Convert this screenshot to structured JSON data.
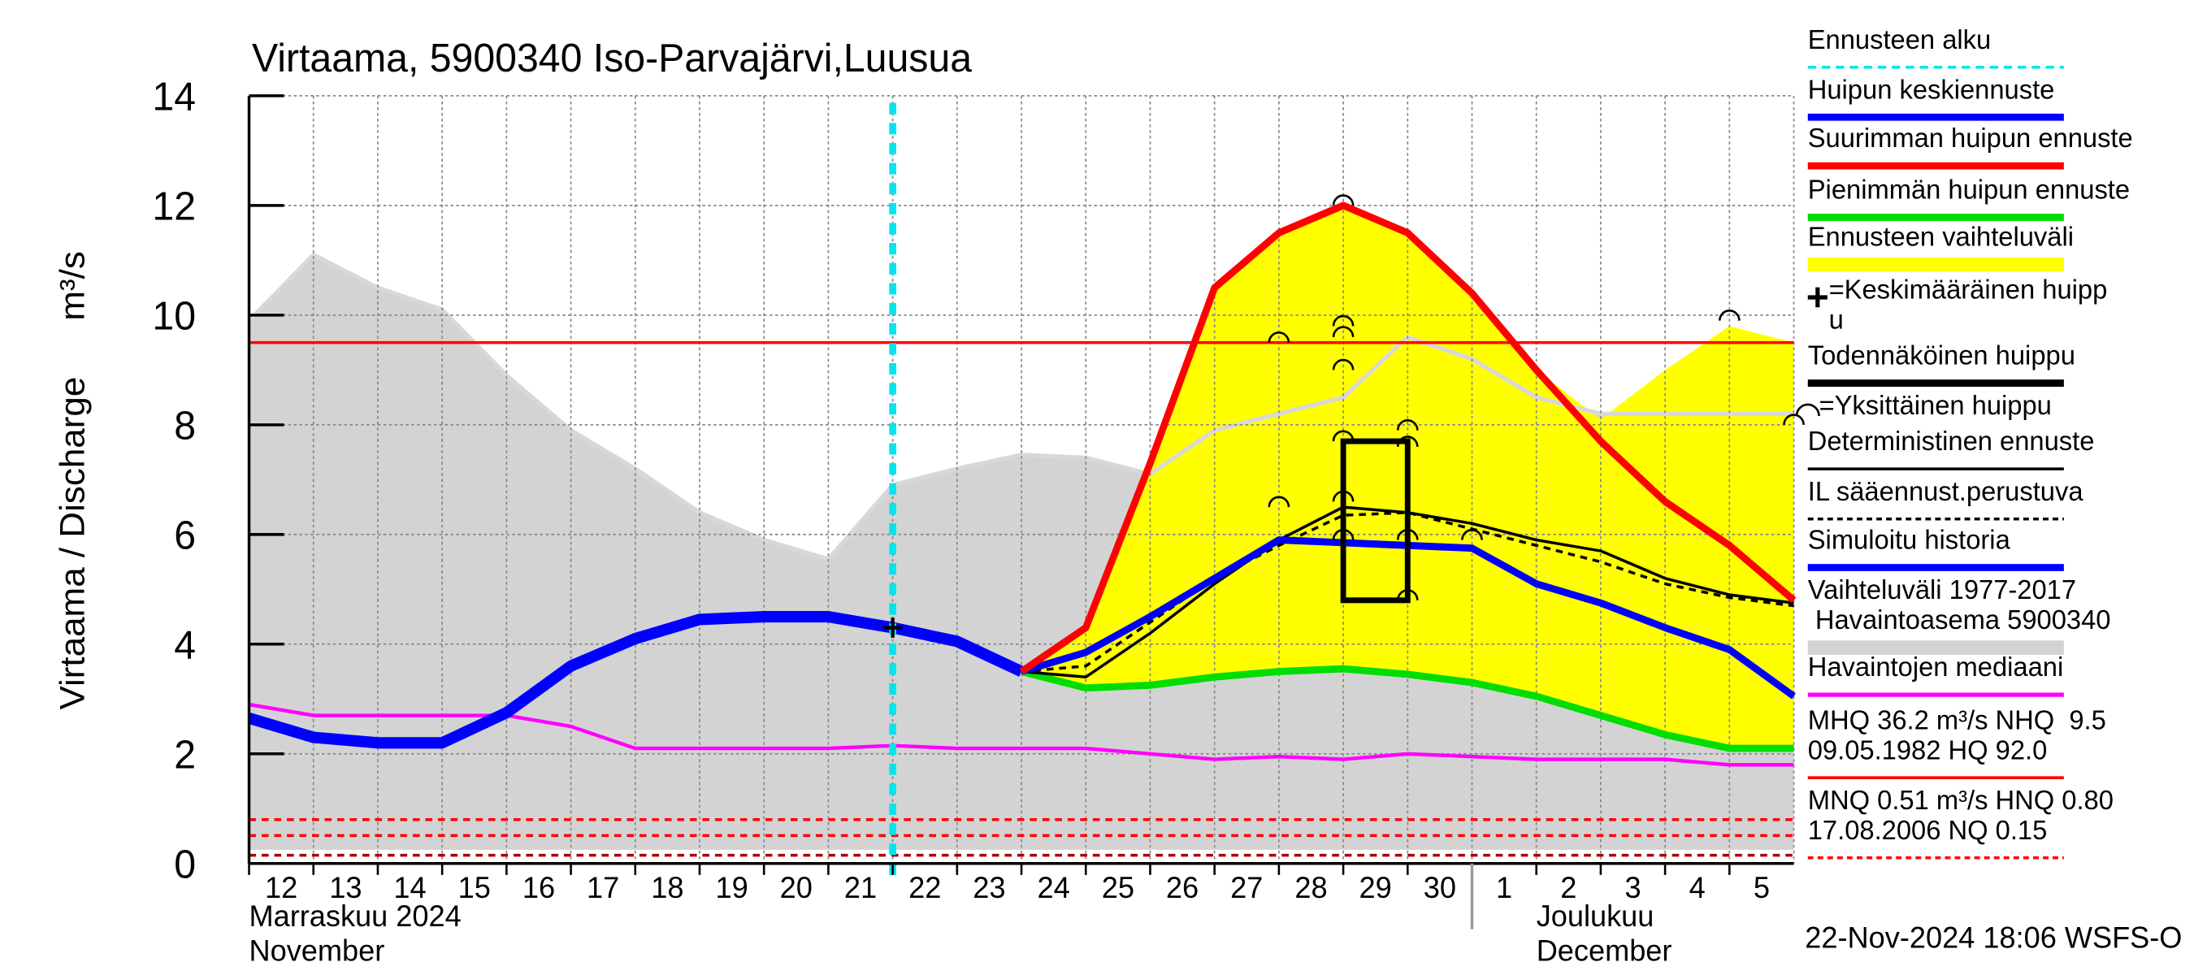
{
  "chart_data": {
    "type": "line",
    "title": "Virtaama, 5900340 Iso-Parvajärvi,Luusua",
    "ylabel": "Virtaama / Discharge",
    "yunit": "m³/s",
    "ylim": [
      0,
      14
    ],
    "yticks": [
      0,
      2,
      4,
      6,
      8,
      10,
      12,
      14
    ],
    "xlim": [
      0,
      24
    ],
    "grid": true,
    "categories": [
      "12",
      "13",
      "14",
      "15",
      "16",
      "17",
      "18",
      "19",
      "20",
      "21",
      "22",
      "23",
      "24",
      "25",
      "26",
      "27",
      "28",
      "29",
      "30",
      "1",
      "2",
      "3",
      "4",
      "5"
    ],
    "months": [
      {
        "lines": [
          "Marraskuu 2024",
          "November"
        ],
        "start": 0
      },
      {
        "lines": [
          "Joulukuu",
          "December"
        ],
        "start": 19
      }
    ],
    "x": [
      0,
      1,
      2,
      3,
      4,
      5,
      6,
      7,
      8,
      9,
      10,
      11,
      12,
      13,
      14,
      15,
      16,
      17,
      18,
      19,
      20,
      21,
      22,
      23,
      24
    ],
    "bands": [
      {
        "color": "#d3d3d3",
        "edge": "#d8d8d8",
        "low": [
          0.25,
          0.25,
          0.25,
          0.25,
          0.25,
          0.25,
          0.25,
          0.25,
          0.25,
          0.25,
          0.25,
          0.25,
          0.25,
          0.25,
          0.25,
          0.25,
          0.25,
          0.25,
          0.25,
          0.25,
          0.25,
          0.25,
          0.25,
          0.25,
          0.25
        ],
        "high": [
          9.9,
          11.1,
          10.5,
          10.1,
          8.9,
          7.9,
          7.2,
          6.4,
          5.9,
          5.55,
          6.9,
          7.2,
          7.45,
          7.4,
          7.1,
          7.9,
          8.2,
          8.5,
          9.6,
          9.2,
          8.5,
          8.2,
          8.2,
          8.2,
          8.2
        ]
      },
      {
        "color": "#ffff00",
        "low": [
          null,
          null,
          null,
          null,
          null,
          null,
          null,
          null,
          null,
          null,
          null,
          null,
          3.5,
          3.2,
          3.25,
          3.4,
          3.5,
          3.55,
          3.45,
          3.3,
          3.05,
          2.7,
          2.35,
          2.1,
          2.1
        ],
        "high": [
          null,
          null,
          null,
          null,
          null,
          null,
          null,
          null,
          null,
          null,
          null,
          null,
          3.5,
          4.3,
          7.3,
          10.5,
          11.5,
          12.0,
          11.5,
          10.4,
          9.0,
          8.1,
          9.0,
          9.8,
          9.5
        ]
      }
    ],
    "hlines": [
      {
        "value": 9.5,
        "color": "#ff0000",
        "style": "solid"
      },
      {
        "value": 0.8,
        "color": "#ff0000",
        "style": "dashed"
      },
      {
        "value": 0.51,
        "color": "#ff0000",
        "style": "dashed"
      },
      {
        "value": 0.15,
        "color": "#aa0000",
        "style": "dashed"
      }
    ],
    "series": [
      {
        "color": "#ff00ff",
        "style": "medium",
        "values": [
          2.9,
          2.7,
          2.7,
          2.7,
          2.7,
          2.5,
          2.1,
          2.1,
          2.1,
          2.1,
          2.15,
          2.1,
          2.1,
          2.1,
          2.0,
          1.9,
          1.95,
          1.9,
          2.0,
          1.95,
          1.9,
          1.9,
          1.9,
          1.8,
          1.8
        ]
      },
      {
        "color": "#00dd00",
        "style": "thick",
        "values": [
          null,
          null,
          null,
          null,
          null,
          null,
          null,
          null,
          null,
          null,
          null,
          null,
          3.5,
          3.2,
          3.25,
          3.4,
          3.5,
          3.55,
          3.45,
          3.3,
          3.05,
          2.7,
          2.35,
          2.1,
          2.1
        ]
      },
      {
        "color": "#000000",
        "style": "thin",
        "values": [
          null,
          null,
          null,
          null,
          null,
          null,
          null,
          null,
          null,
          null,
          null,
          null,
          3.5,
          3.4,
          4.2,
          5.1,
          5.9,
          6.5,
          6.4,
          6.2,
          5.9,
          5.7,
          5.2,
          4.9,
          4.75
        ]
      },
      {
        "color": "#000000",
        "style": "dashed",
        "values": [
          null,
          null,
          null,
          null,
          null,
          null,
          null,
          null,
          null,
          null,
          null,
          null,
          3.5,
          3.6,
          4.4,
          5.2,
          5.8,
          6.35,
          6.4,
          6.1,
          5.8,
          5.5,
          5.1,
          4.85,
          4.7
        ]
      },
      {
        "color": "#0000ff",
        "style": "thicker",
        "values": [
          2.65,
          2.3,
          2.2,
          2.2,
          2.75,
          3.6,
          4.1,
          4.45,
          4.5,
          4.5,
          4.3,
          4.05,
          3.5,
          null,
          null,
          null,
          null,
          null,
          null,
          null,
          null,
          null,
          null,
          null,
          null
        ]
      },
      {
        "color": "#0000ff",
        "style": "thick",
        "values": [
          null,
          null,
          null,
          null,
          null,
          null,
          null,
          null,
          null,
          null,
          null,
          null,
          3.5,
          3.85,
          4.5,
          5.2,
          5.9,
          5.85,
          5.8,
          5.75,
          5.1,
          4.75,
          4.3,
          3.9,
          3.05
        ]
      },
      {
        "color": "#ff0000",
        "style": "thick",
        "values": [
          null,
          null,
          null,
          null,
          null,
          null,
          null,
          null,
          null,
          null,
          null,
          null,
          3.5,
          4.3,
          7.3,
          10.5,
          11.5,
          12.0,
          11.5,
          10.4,
          9.0,
          7.7,
          6.6,
          5.8,
          4.8
        ]
      }
    ],
    "peak_box": {
      "x": [
        17,
        18
      ],
      "y": [
        4.8,
        7.7
      ],
      "color": "#000000"
    },
    "single_peaks": {
      "x": [
        16,
        16,
        17,
        17,
        17,
        17,
        17,
        17,
        17,
        18,
        18,
        18,
        18,
        19,
        23,
        24
      ],
      "y": [
        9.5,
        6.5,
        12.0,
        9.8,
        9.6,
        9.0,
        7.7,
        6.6,
        5.9,
        7.9,
        7.6,
        5.9,
        4.8,
        5.9,
        9.9,
        8.0
      ]
    },
    "mean_peak": {
      "x": 10,
      "y": 4.3
    },
    "forecast_start": 10,
    "forecast_color": "#00e5ee",
    "legend": [
      {
        "lines": [
          "Ennusteen alku"
        ],
        "color": "#00e5ee",
        "style": "dashed"
      },
      {
        "lines": [
          "Huipun keskiennuste"
        ],
        "color": "#0000ff",
        "style": "thick"
      },
      {
        "lines": [
          "Suurimman huipun ennuste"
        ],
        "color": "#ff0000",
        "style": "thick"
      },
      {
        "lines": [
          "Pienimmän huipun ennuste"
        ],
        "color": "#00dd00",
        "style": "thick"
      },
      {
        "lines": [
          "Ennusteen vaihteluväli"
        ],
        "color": "#ffff00",
        "style": "band"
      },
      {
        "lines": [
          "=Keskimääräinen huipp",
          "u"
        ],
        "color": "#000000",
        "style": "plus"
      },
      {
        "lines": [
          "Todennäköinen huippu"
        ],
        "color": "#000000",
        "style": "thick"
      },
      {
        "lines": [
          "=Yksittäinen huippu"
        ],
        "color": "#000000",
        "style": "arc"
      },
      {
        "lines": [
          "Deterministinen ennuste"
        ],
        "color": "#000000",
        "style": "thin"
      },
      {
        "lines": [
          "IL sääennust.perustuva"
        ],
        "color": "#000000",
        "style": "dashed"
      },
      {
        "lines": [
          "Simuloitu historia"
        ],
        "color": "#0000ff",
        "style": "thick"
      },
      {
        "lines": [
          "Vaihteluväli 1977-2017",
          " Havaintoasema 5900340"
        ],
        "color": "#d3d3d3",
        "style": "band"
      },
      {
        "lines": [
          "Havaintojen mediaani"
        ],
        "color": "#ff00ff",
        "style": "medium"
      },
      {
        "lines": [
          "MHQ 36.2 m³/s NHQ  9.5",
          "09.05.1982 HQ 92.0"
        ],
        "color": "#ff0000",
        "style": "thin"
      },
      {
        "lines": [
          "MNQ 0.51 m³/s HNQ 0.80",
          "17.08.2006 NQ 0.15"
        ],
        "color": "#ff0000",
        "style": "dashed"
      }
    ],
    "footer": "22-Nov-2024 18:06 WSFS-O"
  }
}
